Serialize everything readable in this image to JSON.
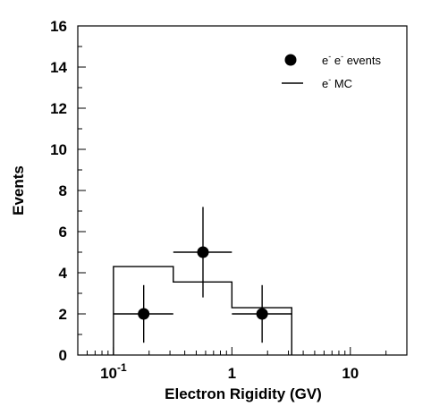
{
  "chart_data": {
    "type": "scatter",
    "xlabel": "Electron Rigidity (GV)",
    "ylabel": "Events",
    "x_scale": "log",
    "xlim": [
      0.05,
      30
    ],
    "ylim": [
      0,
      16
    ],
    "yticks": [
      0,
      2,
      4,
      6,
      8,
      10,
      12,
      14,
      16
    ],
    "xtick_labels": [
      {
        "value": 0.1,
        "base": "10",
        "exp": "-1"
      },
      {
        "value": 1,
        "base": "1",
        "exp": ""
      },
      {
        "value": 10,
        "base": "10",
        "exp": ""
      }
    ],
    "grid": false,
    "legend_position": "top-right",
    "legend": [
      {
        "marker": "filled-circle",
        "base1": "e",
        "sup1": "-",
        "base2": "e",
        "sup2": "-",
        "tail": " events"
      },
      {
        "marker": "line",
        "base1": "e",
        "sup1": "-",
        "tail": " MC"
      }
    ],
    "series": [
      {
        "kind": "points",
        "points": [
          {
            "x": 0.18,
            "y": 2,
            "xerr": [
              0.1,
              0.32
            ],
            "yerr": [
              0.6,
              3.4
            ]
          },
          {
            "x": 0.57,
            "y": 5,
            "xerr": [
              0.32,
              1.0
            ],
            "yerr": [
              2.8,
              7.2
            ]
          },
          {
            "x": 1.8,
            "y": 2,
            "xerr": [
              1.0,
              3.2
            ],
            "yerr": [
              0.6,
              3.4
            ]
          }
        ]
      },
      {
        "kind": "histogram",
        "bins": [
          {
            "x0": 0.1,
            "x1": 0.32,
            "y": 4.3
          },
          {
            "x0": 0.32,
            "x1": 1.0,
            "y": 3.55
          },
          {
            "x0": 1.0,
            "x1": 3.2,
            "y": 2.3
          }
        ]
      }
    ]
  }
}
